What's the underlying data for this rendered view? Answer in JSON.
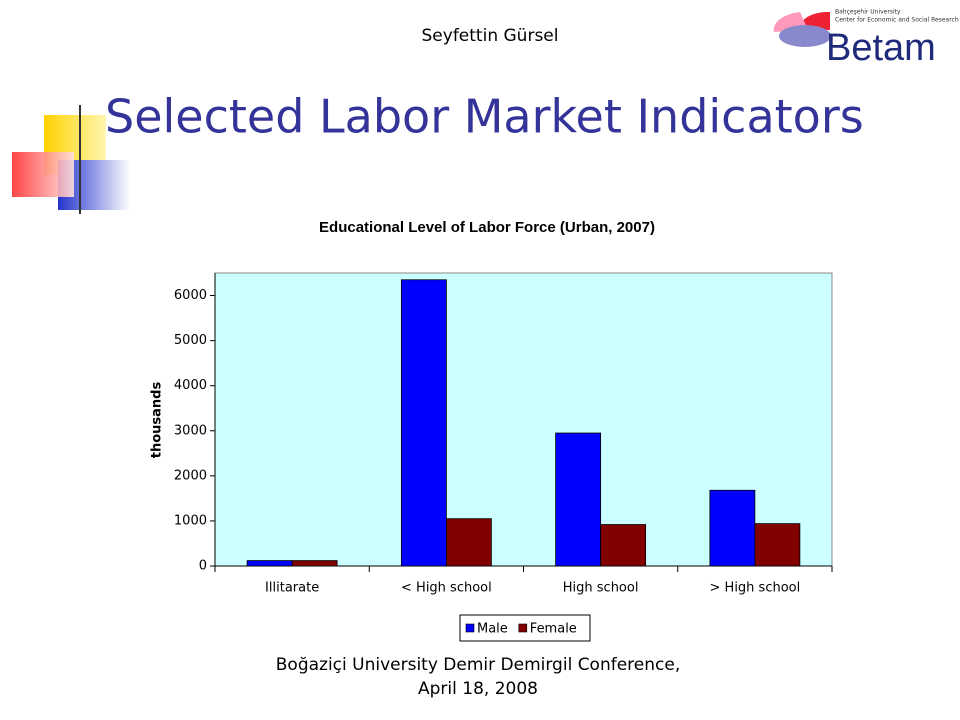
{
  "header": {
    "author": "Seyfettin Gürsel",
    "logo": {
      "university": "Bahçeşehir University",
      "center": "Center for Economic and Social Research",
      "name": "Betam"
    }
  },
  "title": "Selected Labor Market Indicators",
  "chart_data": {
    "type": "bar",
    "title": "Educational Level of Labor Force (Urban, 2007)",
    "y_label": "thousands",
    "categories": [
      "Illitarate",
      "< High school",
      "High school",
      "> High school"
    ],
    "series": [
      {
        "name": "Male",
        "color": "#0000ff",
        "values": [
          120,
          6350,
          2950,
          1680
        ]
      },
      {
        "name": "Female",
        "color": "#800000",
        "values": [
          120,
          1050,
          920,
          940
        ]
      }
    ],
    "ylim": [
      0,
      6500
    ],
    "yticks": [
      0,
      1000,
      2000,
      3000,
      4000,
      5000,
      6000
    ],
    "grid": false,
    "background": "#ccffff",
    "legend": "bottom"
  },
  "footer": {
    "lines": [
      "Boğaziçi University Demir Demirgil Conference,",
      "April 18, 2008"
    ]
  }
}
